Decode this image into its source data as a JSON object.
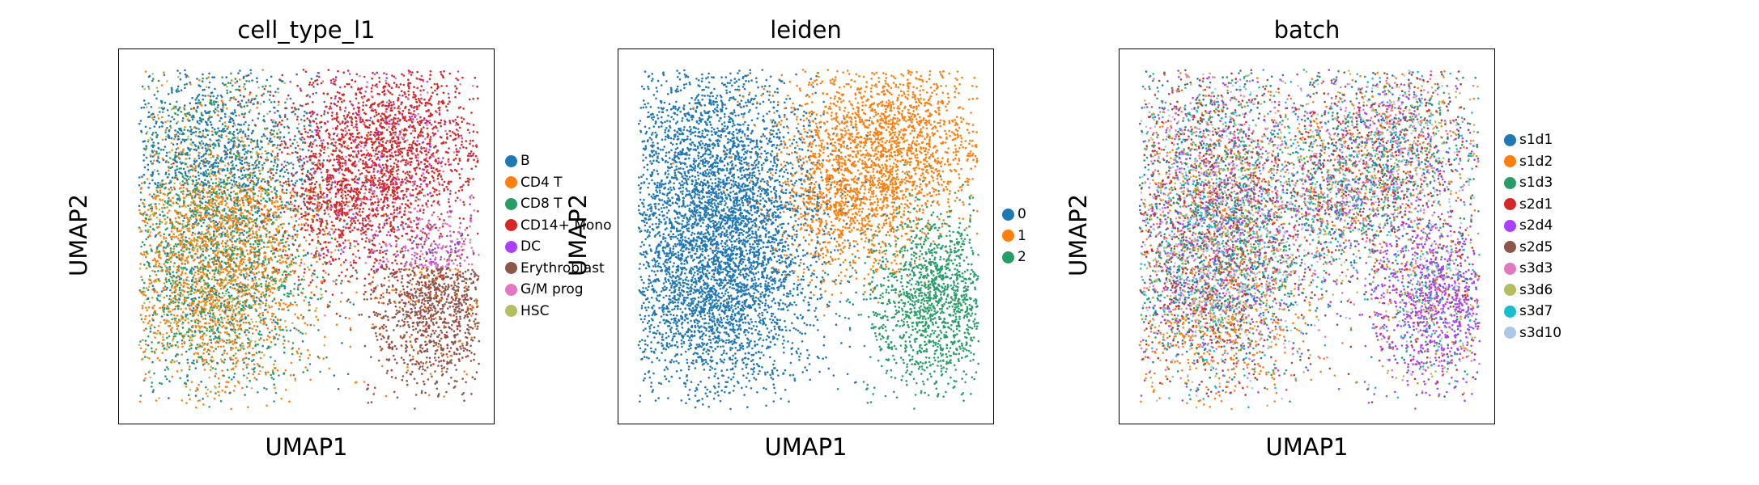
{
  "chart_data": [
    {
      "type": "scatter",
      "title": "cell_type_l1",
      "xlabel": "UMAP1",
      "ylabel": "UMAP2",
      "grid": false,
      "legend": "right",
      "categories": [
        "B",
        "CD4 T",
        "CD8 T",
        "CD14+ Mono",
        "DC",
        "Erythroblast",
        "G/M prog",
        "HSC"
      ],
      "colors": [
        "#1f77b4",
        "#ff7f0e",
        "#279e68",
        "#d62728",
        "#aa40fc",
        "#8c564b",
        "#e377c2",
        "#b5bd61"
      ]
    },
    {
      "type": "scatter",
      "title": "leiden",
      "xlabel": "UMAP1",
      "ylabel": "UMAP2",
      "grid": false,
      "legend": "right",
      "categories": [
        "0",
        "1",
        "2"
      ],
      "colors": [
        "#1f77b4",
        "#ff7f0e",
        "#279e68"
      ]
    },
    {
      "type": "scatter",
      "title": "batch",
      "xlabel": "UMAP1",
      "ylabel": "UMAP2",
      "grid": false,
      "legend": "right",
      "categories": [
        "s1d1",
        "s1d2",
        "s1d3",
        "s2d1",
        "s2d4",
        "s2d5",
        "s3d3",
        "s3d6",
        "s3d7",
        "s3d10"
      ],
      "colors": [
        "#1f77b4",
        "#ff7f0e",
        "#279e68",
        "#d62728",
        "#aa40fc",
        "#8c564b",
        "#e377c2",
        "#b5bd61",
        "#17becf",
        "#aec7e8"
      ]
    }
  ]
}
